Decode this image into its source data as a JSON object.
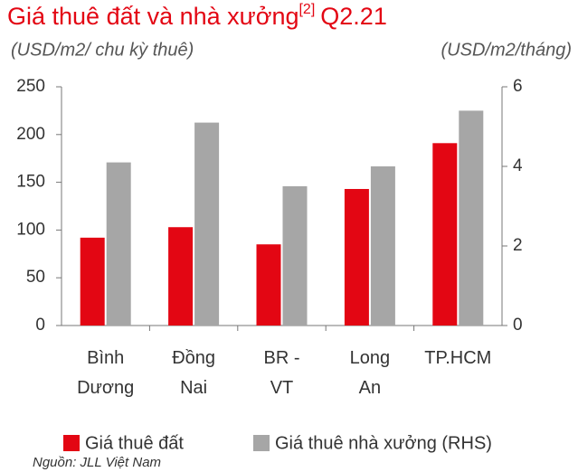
{
  "chart_data": {
    "type": "bar",
    "title": "Giá thuê đất và nhà xưởng",
    "title_superscript": "[2]",
    "title_suffix": "Q2.21",
    "y_label": "(USD/m2/ chu kỳ thuê)",
    "y2_label": "(USD/m2/tháng)",
    "source": "Nguồn: JLL Việt Nam",
    "categories": [
      "Bình\nDương",
      "Đồng\nNai",
      "BR -\nVT",
      "Long\nAn",
      "TP.HCM"
    ],
    "series": [
      {
        "name": "Giá thuê đất",
        "color": "#e30613",
        "values": [
          92,
          103,
          85,
          143,
          191
        ]
      },
      {
        "name": "Giá thuê nhà xưởng (RHS)",
        "color": "#a6a6a6",
        "axis": "y2",
        "values": [
          4.1,
          5.1,
          3.5,
          4.0,
          5.4
        ]
      }
    ],
    "ylim": [
      0,
      250
    ],
    "yticks": [
      0,
      50,
      100,
      150,
      200,
      250
    ],
    "y2lim": [
      0,
      6
    ],
    "y2ticks": [
      0,
      2,
      4,
      6
    ]
  }
}
